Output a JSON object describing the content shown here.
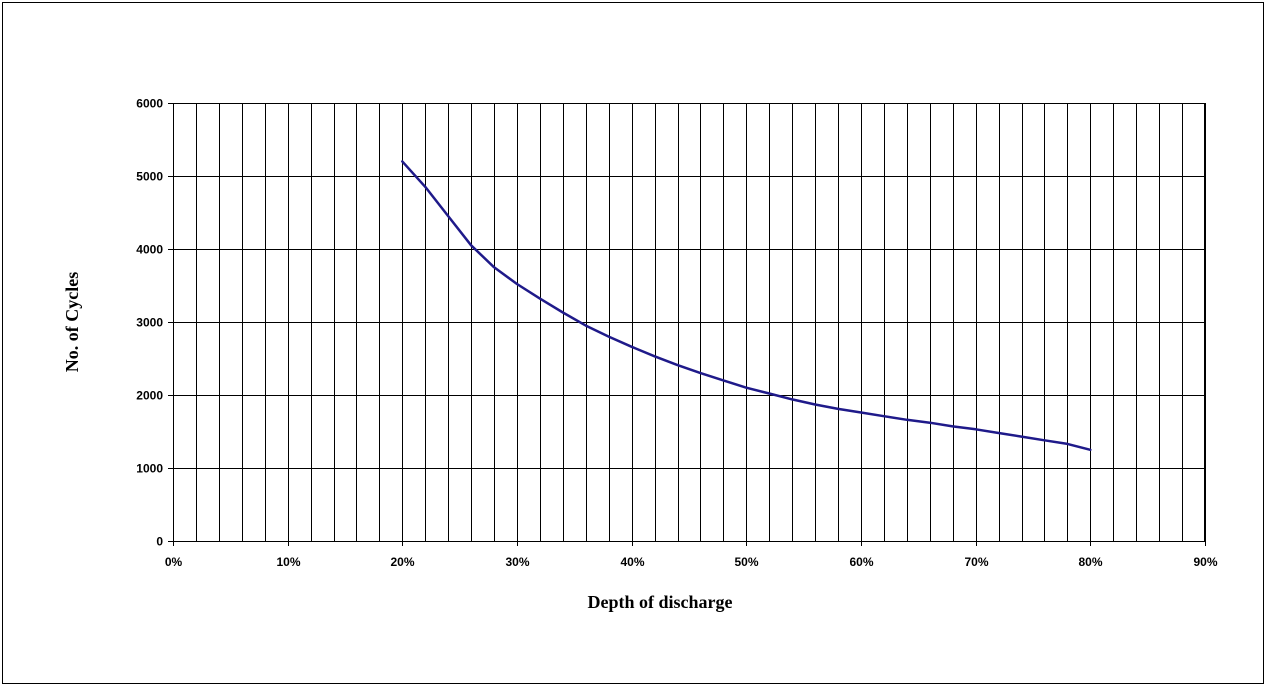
{
  "chart_data": {
    "type": "line",
    "title": "",
    "xlabel": "Depth of discharge",
    "ylabel": "No. of Cycles",
    "xlim": [
      0,
      90
    ],
    "ylim": [
      0,
      6000
    ],
    "x_ticks": [
      0,
      10,
      20,
      30,
      40,
      50,
      60,
      70,
      80,
      90
    ],
    "x_tick_labels": [
      "0%",
      "10%",
      "20%",
      "30%",
      "40%",
      "50%",
      "60%",
      "70%",
      "80%",
      "90%"
    ],
    "y_ticks": [
      0,
      1000,
      2000,
      3000,
      4000,
      5000,
      6000
    ],
    "y_tick_labels": [
      "0",
      "1000",
      "2000",
      "3000",
      "4000",
      "5000",
      "6000"
    ],
    "x_minor_gridline_step": 2,
    "grid": true,
    "line_color": "#1f1a8a",
    "series": [
      {
        "x": [
          20,
          22,
          24,
          26,
          28,
          30,
          32,
          34,
          36,
          38,
          40,
          42,
          44,
          46,
          48,
          50,
          52,
          54,
          56,
          58,
          60,
          62,
          64,
          66,
          68,
          70,
          72,
          74,
          76,
          78,
          80
        ],
        "values": [
          5200,
          4850,
          4450,
          4050,
          3750,
          3520,
          3320,
          3130,
          2950,
          2800,
          2660,
          2530,
          2410,
          2300,
          2200,
          2100,
          2020,
          1940,
          1870,
          1810,
          1760,
          1710,
          1660,
          1620,
          1570,
          1530,
          1480,
          1430,
          1380,
          1330,
          1250
        ]
      }
    ]
  }
}
